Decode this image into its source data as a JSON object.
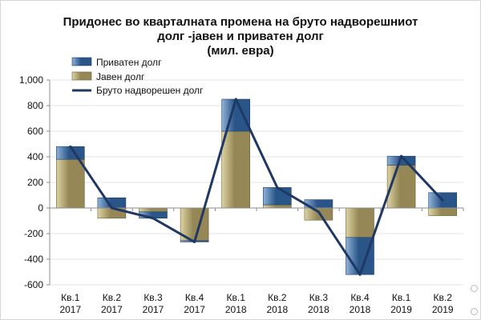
{
  "colors": {
    "private": "#2a5588",
    "private_light": "#8fb3d9",
    "public": "#958756",
    "public_light": "#ddd3a2",
    "line": "#1f3864",
    "axis": "#8c8c8c",
    "grid": "#e6e6e6"
  },
  "chart_data": {
    "type": "bar",
    "title_lines": [
      "Придонес во кварталната промена на бруто надворешниот",
      "долг -јавен и приватен долг",
      "(мил. евра)"
    ],
    "categories": [
      [
        "Кв.1",
        "2017"
      ],
      [
        "Кв.2",
        "2017"
      ],
      [
        "Кв.3",
        "2017"
      ],
      [
        "Кв.4",
        "2017"
      ],
      [
        "Кв.1",
        "2018"
      ],
      [
        "Кв.2",
        "2018"
      ],
      [
        "Кв.3",
        "2018"
      ],
      [
        "Кв.4",
        "2018"
      ],
      [
        "Кв.1",
        "2019"
      ],
      [
        "Кв.2",
        "2019"
      ]
    ],
    "ylim": [
      -600,
      1000
    ],
    "yticks": [
      "-600",
      "-400",
      "-200",
      "0",
      "200",
      "400",
      "600",
      "800",
      "1,000"
    ],
    "ytick_values": [
      -600,
      -400,
      -200,
      0,
      200,
      400,
      600,
      800,
      1000
    ],
    "stacked": true,
    "legend_position": "top-left",
    "series": [
      {
        "name": "Приватен долг",
        "kind": "bar",
        "values": [
          100,
          80,
          -50,
          -10,
          250,
          135,
          65,
          -290,
          70,
          120
        ]
      },
      {
        "name": "Јавен долг",
        "kind": "bar",
        "values": [
          380,
          -80,
          -30,
          -255,
          600,
          25,
          -95,
          -230,
          335,
          -60
        ]
      },
      {
        "name": "Бруто надворешен долг",
        "kind": "line",
        "values": [
          480,
          0,
          -80,
          -265,
          850,
          160,
          -30,
          -520,
          405,
          60
        ]
      }
    ]
  }
}
